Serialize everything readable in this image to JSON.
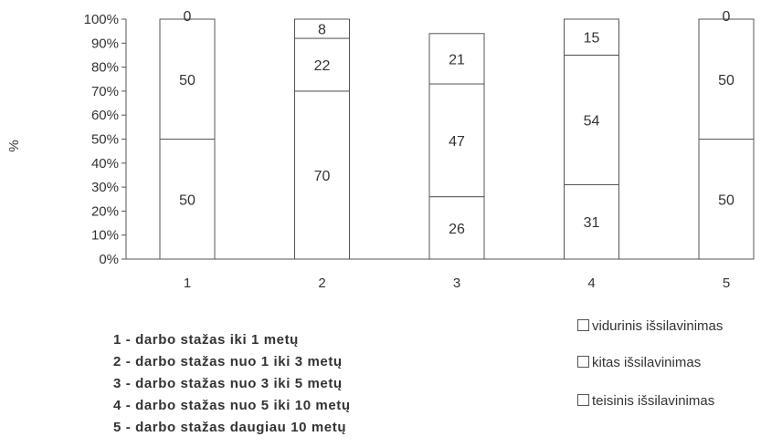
{
  "chart_data": {
    "type": "bar",
    "stacked": true,
    "percent": true,
    "ylabel": "%",
    "yticks": [
      "0%",
      "10%",
      "20%",
      "30%",
      "40%",
      "50%",
      "60%",
      "70%",
      "80%",
      "90%",
      "100%"
    ],
    "ylim": [
      0,
      100
    ],
    "categories": [
      "1",
      "2",
      "3",
      "4",
      "5"
    ],
    "series": [
      {
        "name": "teisinis išsilavinimas",
        "values": [
          50,
          70,
          26,
          31,
          50
        ]
      },
      {
        "name": "kitas išsilavinimas",
        "values": [
          50,
          22,
          47,
          54,
          50
        ]
      },
      {
        "name": "vidurinis išsilavinimas",
        "values": [
          0,
          8,
          21,
          15,
          0
        ]
      }
    ],
    "data_labels": [
      [
        "50",
        "50",
        "0"
      ],
      [
        "70",
        "22",
        "8"
      ],
      [
        "26",
        "47",
        "21"
      ],
      [
        "31",
        "54",
        "15"
      ],
      [
        "50",
        "50",
        "0"
      ]
    ],
    "legend_position": "bottom-right",
    "grid": false
  },
  "captions": [
    "1 - darbo stažas iki 1 metų",
    "2 - darbo stažas nuo 1 iki 3 metų",
    "3 - darbo stažas nuo 3 iki 5 metų",
    "4 - darbo stažas nuo 5 iki 10 metų",
    "5 - darbo stažas daugiau 10 metų"
  ],
  "legend": [
    "vidurinis išsilavinimas",
    "kitas išsilavinimas",
    "teisinis išsilavinimas"
  ],
  "colors": {
    "bar_fill": "#ffffff",
    "bar_stroke": "#555555",
    "axis": "#555555",
    "text": "#2b2b2b"
  }
}
